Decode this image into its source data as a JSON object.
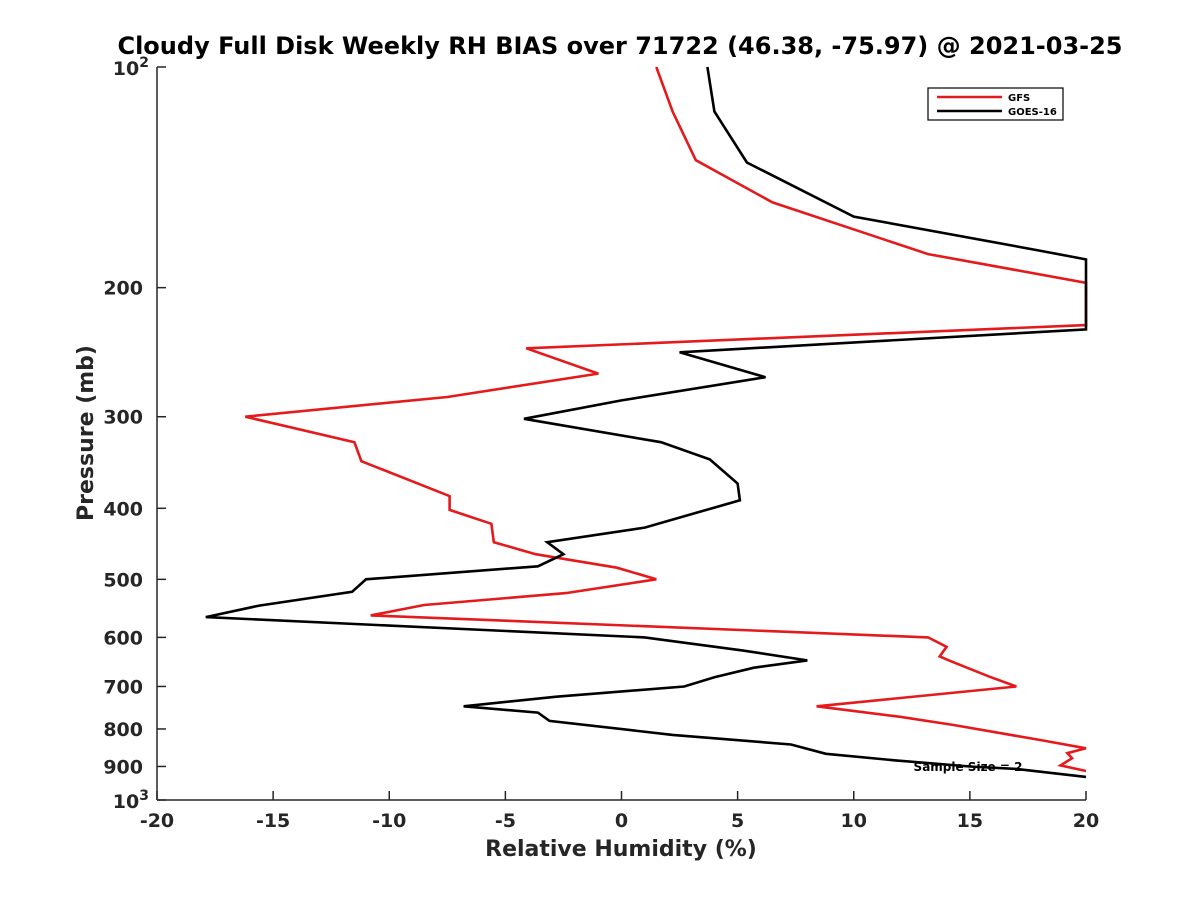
{
  "chart_data": {
    "type": "line",
    "title": "Cloudy Full Disk Weekly RH BIAS over 71722 (46.38, -75.97) @ 2021-03-25",
    "xlabel": "Relative Humidity (%)",
    "ylabel": "Pressure (mb)",
    "xlim": [
      -20,
      20
    ],
    "ylim": [
      100,
      1000
    ],
    "yscale": "log",
    "y_reversed": true,
    "x_ticks": [
      -20,
      -15,
      -10,
      -5,
      0,
      5,
      10,
      15,
      20
    ],
    "x_tick_labels": [
      "-20",
      "-15",
      "-10",
      "-5",
      "0",
      "5",
      "10",
      "15",
      "20"
    ],
    "y_ticks": [
      100,
      200,
      300,
      400,
      500,
      600,
      700,
      800,
      900,
      1000
    ],
    "y_tick_labels": [
      "100",
      "200",
      "300",
      "400",
      "500",
      "600",
      "700",
      "800",
      "900",
      "1000"
    ],
    "y_tick_exponent_labels": [
      {
        "value": 100,
        "base": "10",
        "exp": "2"
      },
      {
        "value": 1000,
        "base": "10",
        "exp": "3"
      }
    ],
    "legend_position": "top-right",
    "annotation": "Sample Size = 2",
    "series": [
      {
        "name": "GFS",
        "color": "#e41a1c",
        "points": [
          [
            1.5,
            100
          ],
          [
            2.2,
            115
          ],
          [
            3.2,
            134
          ],
          [
            6.5,
            153
          ],
          [
            13.2,
            180
          ],
          [
            20.0,
            197
          ],
          [
            20.0,
            225
          ],
          [
            -4.1,
            242
          ],
          [
            -1.0,
            262
          ],
          [
            -7.5,
            282
          ],
          [
            -16.2,
            300
          ],
          [
            -11.5,
            325
          ],
          [
            -11.2,
            345
          ],
          [
            -7.4,
            385
          ],
          [
            -7.4,
            402
          ],
          [
            -5.6,
            420
          ],
          [
            -5.5,
            445
          ],
          [
            -3.7,
            462
          ],
          [
            -0.2,
            482
          ],
          [
            1.5,
            500
          ],
          [
            -2.4,
            522
          ],
          [
            -8.5,
            542
          ],
          [
            -10.8,
            560
          ],
          [
            13.2,
            600
          ],
          [
            14.0,
            618
          ],
          [
            13.7,
            637
          ],
          [
            14.1,
            645
          ],
          [
            15.8,
            678
          ],
          [
            17.0,
            700
          ],
          [
            8.4,
            745
          ],
          [
            12.0,
            770
          ],
          [
            14.3,
            790
          ],
          [
            18.0,
            828
          ],
          [
            20.0,
            850
          ],
          [
            19.2,
            863
          ],
          [
            19.4,
            877
          ],
          [
            18.9,
            897
          ],
          [
            20.0,
            913
          ]
        ]
      },
      {
        "name": "GOES-16",
        "color": "#000000",
        "points": [
          [
            3.7,
            100
          ],
          [
            4.0,
            115
          ],
          [
            5.4,
            135
          ],
          [
            10.0,
            160
          ],
          [
            18.0,
            178
          ],
          [
            20.0,
            183
          ],
          [
            20.0,
            228
          ],
          [
            2.5,
            245
          ],
          [
            6.2,
            265
          ],
          [
            0.0,
            285
          ],
          [
            -4.2,
            302
          ],
          [
            1.7,
            325
          ],
          [
            3.8,
            343
          ],
          [
            5.0,
            370
          ],
          [
            5.1,
            390
          ],
          [
            3.3,
            405
          ],
          [
            1.0,
            425
          ],
          [
            -3.2,
            445
          ],
          [
            -2.5,
            462
          ],
          [
            -3.6,
            480
          ],
          [
            -11.0,
            500
          ],
          [
            -11.6,
            520
          ],
          [
            -15.6,
            543
          ],
          [
            -17.9,
            563
          ],
          [
            1.0,
            600
          ],
          [
            5.2,
            625
          ],
          [
            8.0,
            645
          ],
          [
            5.7,
            660
          ],
          [
            4.0,
            680
          ],
          [
            2.7,
            700
          ],
          [
            -2.8,
            723
          ],
          [
            -6.8,
            745
          ],
          [
            -3.6,
            760
          ],
          [
            -3.1,
            780
          ],
          [
            2.2,
            815
          ],
          [
            7.3,
            840
          ],
          [
            8.8,
            865
          ],
          [
            11.8,
            883
          ],
          [
            15.0,
            900
          ],
          [
            17.0,
            907
          ],
          [
            20.0,
            930
          ]
        ]
      }
    ]
  }
}
